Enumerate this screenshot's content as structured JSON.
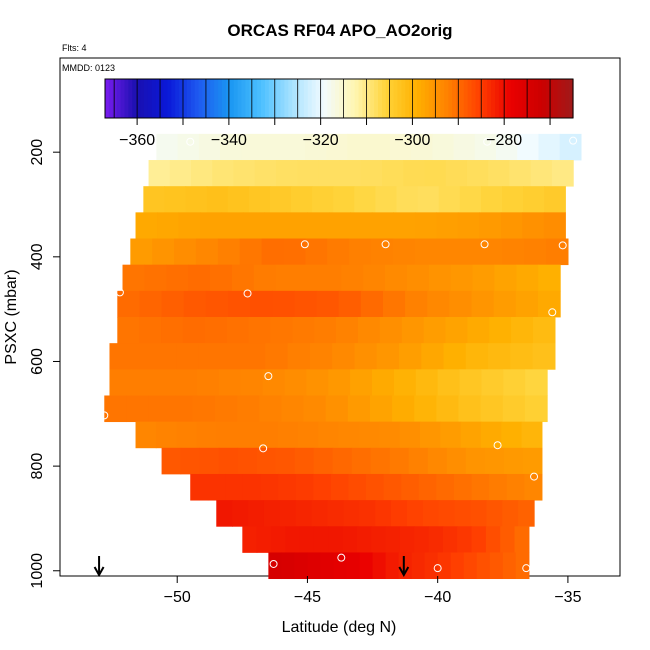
{
  "title": "ORCAS RF04 APO_AO2orig",
  "flights_note": "Flts: 4",
  "date_note": "MMDD: 0123",
  "chart_data": {
    "type": "heatmap",
    "title": "ORCAS RF04 APO_AO2orig",
    "xlabel": "Latitude (deg N)",
    "ylabel": "PSXC (mbar)",
    "xlim": [
      -54.5,
      -33
    ],
    "ylim": [
      1010,
      20
    ],
    "x_ticks": [
      -50,
      -45,
      -40,
      -35
    ],
    "y_ticks": [
      200,
      400,
      600,
      800,
      1000
    ],
    "grid": false,
    "colorbar": {
      "range": [
        -367,
        -265
      ],
      "ticks": [
        -360,
        -340,
        -320,
        -300,
        -280
      ],
      "palette": [
        "#7a1cf0",
        "#1a10b0",
        "#0a18d8",
        "#1e5af0",
        "#1a96f2",
        "#4cc0ff",
        "#a8e2ff",
        "#f2fbff",
        "#fff6b2",
        "#ffd43a",
        "#ffb000",
        "#ff8000",
        "#ff4000",
        "#ea0000",
        "#cc0000",
        "#a01a1a"
      ]
    },
    "layers": [
      {
        "p": 190,
        "lat_min": -50.8,
        "lat_max": -34.5,
        "values": [
          -318,
          -316,
          -316,
          -315,
          -316,
          -318,
          -322
        ]
      },
      {
        "p": 240,
        "lat_min": -51.1,
        "lat_max": -34.8,
        "values": [
          -311,
          -309,
          -308,
          -308,
          -307,
          -308,
          -310
        ]
      },
      {
        "p": 290,
        "lat_min": -51.3,
        "lat_max": -35.1,
        "values": [
          -303,
          -302,
          -304,
          -306,
          -308,
          -306,
          -304
        ]
      },
      {
        "p": 340,
        "lat_min": -51.6,
        "lat_max": -35.1,
        "values": [
          -298,
          -297,
          -297,
          -297,
          -297,
          -296,
          -294
        ]
      },
      {
        "p": 390,
        "lat_min": -51.8,
        "lat_max": -35.0,
        "values": [
          -296,
          -293,
          -290,
          -292,
          -293,
          -293,
          -292
        ]
      },
      {
        "p": 440,
        "lat_min": -52.1,
        "lat_max": -35.3,
        "values": [
          -291,
          -290,
          -292,
          -292,
          -294,
          -296,
          -299
        ]
      },
      {
        "p": 490,
        "lat_min": -52.3,
        "lat_max": -35.3,
        "values": [
          -290,
          -288,
          -287,
          -288,
          -292,
          -295,
          -298
        ]
      },
      {
        "p": 540,
        "lat_min": -52.3,
        "lat_max": -35.5,
        "values": [
          -291,
          -290,
          -291,
          -292,
          -295,
          -298,
          -301
        ]
      },
      {
        "p": 590,
        "lat_min": -52.6,
        "lat_max": -35.5,
        "values": [
          -291,
          -291,
          -291,
          -293,
          -296,
          -300,
          -302
        ]
      },
      {
        "p": 640,
        "lat_min": -52.6,
        "lat_max": -35.8,
        "values": [
          -292,
          -292,
          -293,
          -295,
          -299,
          -303,
          -306
        ]
      },
      {
        "p": 690,
        "lat_min": -52.8,
        "lat_max": -35.8,
        "values": [
          -291,
          -291,
          -292,
          -294,
          -298,
          -302,
          -305
        ]
      },
      {
        "p": 740,
        "lat_min": -51.6,
        "lat_max": -36.0,
        "values": [
          -293,
          -292,
          -292,
          -293,
          -294,
          -297,
          -300
        ]
      },
      {
        "p": 790,
        "lat_min": -50.6,
        "lat_max": -36.0,
        "values": [
          -288,
          -287,
          -288,
          -290,
          -292,
          -295,
          -296
        ]
      },
      {
        "p": 840,
        "lat_min": -49.5,
        "lat_max": -36.0,
        "values": [
          -284,
          -284,
          -285,
          -287,
          -289,
          -291,
          -293
        ]
      },
      {
        "p": 890,
        "lat_min": -48.5,
        "lat_max": -36.3,
        "values": [
          -281,
          -282,
          -283,
          -284,
          -286,
          -287,
          -289
        ]
      },
      {
        "p": 940,
        "lat_min": -47.5,
        "lat_max": -36.5,
        "values": [
          -282,
          -281,
          -281,
          -282,
          -283,
          -285,
          -290
        ]
      },
      {
        "p": 990,
        "lat_min": -46.5,
        "lat_max": -36.5,
        "values": [
          -274,
          -276,
          -278,
          -282,
          -284,
          -287,
          -290
        ]
      }
    ],
    "sample_points": [
      {
        "lat": -49.5,
        "p": 180
      },
      {
        "lat": -38.1,
        "p": 180
      },
      {
        "lat": -37.0,
        "p": 180
      },
      {
        "lat": -34.8,
        "p": 178
      },
      {
        "lat": -45.1,
        "p": 376
      },
      {
        "lat": -42.0,
        "p": 376
      },
      {
        "lat": -38.2,
        "p": 376
      },
      {
        "lat": -35.2,
        "p": 378
      },
      {
        "lat": -52.2,
        "p": 468
      },
      {
        "lat": -47.3,
        "p": 470
      },
      {
        "lat": -35.6,
        "p": 506
      },
      {
        "lat": -46.5,
        "p": 628
      },
      {
        "lat": -52.8,
        "p": 703
      },
      {
        "lat": -46.7,
        "p": 766
      },
      {
        "lat": -37.7,
        "p": 760
      },
      {
        "lat": -36.3,
        "p": 820
      },
      {
        "lat": -46.3,
        "p": 987
      },
      {
        "lat": -43.7,
        "p": 975
      },
      {
        "lat": -40.0,
        "p": 995
      },
      {
        "lat": -36.6,
        "p": 995
      }
    ],
    "markers": [
      {
        "lat": -53.0,
        "symbol": "down-arrow"
      },
      {
        "lat": -41.3,
        "symbol": "down-arrow"
      }
    ]
  }
}
